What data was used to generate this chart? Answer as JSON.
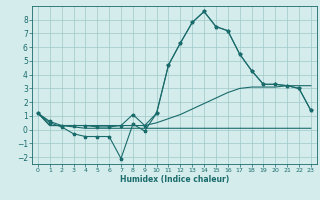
{
  "xlabel": "Humidex (Indice chaleur)",
  "bg_color": "#d4ecec",
  "grid_color": "#a0c8c8",
  "line_color": "#1a6b6b",
  "xlim": [
    -0.5,
    23.5
  ],
  "ylim": [
    -2.5,
    9.0
  ],
  "xticks": [
    0,
    1,
    2,
    3,
    4,
    5,
    6,
    7,
    8,
    9,
    10,
    11,
    12,
    13,
    14,
    15,
    16,
    17,
    18,
    19,
    20,
    21,
    22,
    23
  ],
  "yticks": [
    -2,
    -1,
    0,
    1,
    2,
    3,
    4,
    5,
    6,
    7,
    8
  ],
  "series1": [
    1.2,
    0.6,
    0.3,
    0.3,
    0.3,
    0.2,
    0.2,
    0.3,
    1.1,
    0.3,
    1.2,
    4.7,
    6.3,
    7.8,
    8.6,
    7.5,
    7.2,
    5.5,
    4.3,
    3.3,
    3.3,
    3.2,
    3.0,
    1.4
  ],
  "series2": [
    1.2,
    0.5,
    0.2,
    -0.3,
    -0.5,
    -0.5,
    -0.5,
    -2.1,
    0.4,
    -0.1,
    1.2,
    4.7,
    6.3,
    7.8,
    8.6,
    7.5,
    7.2,
    5.5,
    4.3,
    3.3,
    3.3,
    3.2,
    3.0,
    1.4
  ],
  "series3": [
    1.2,
    0.3,
    0.3,
    0.2,
    0.1,
    0.1,
    0.1,
    0.1,
    0.1,
    0.1,
    0.1,
    0.1,
    0.1,
    0.1,
    0.1,
    0.1,
    0.1,
    0.1,
    0.1,
    0.1,
    0.1,
    0.1,
    0.1,
    0.1
  ],
  "series4": [
    1.2,
    0.3,
    0.3,
    0.3,
    0.3,
    0.3,
    0.3,
    0.3,
    0.3,
    0.3,
    0.5,
    0.8,
    1.1,
    1.5,
    1.9,
    2.3,
    2.7,
    3.0,
    3.1,
    3.1,
    3.1,
    3.2,
    3.2,
    3.2
  ]
}
